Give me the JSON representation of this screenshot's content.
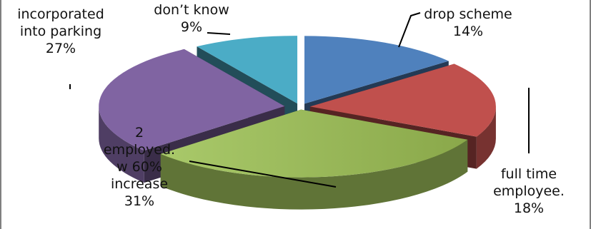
{
  "chart_data": {
    "type": "pie",
    "style": "3d-exploded",
    "slices": [
      {
        "label_lines": [
          "drop scheme"
        ],
        "value_text": "14%",
        "value": 14,
        "color": "#4f81bd"
      },
      {
        "label_lines": [
          "full time",
          "employee."
        ],
        "value_text": "18%",
        "value": 18,
        "color": "#c0504d"
      },
      {
        "label_lines": [
          "2",
          "employed.",
          "w 60%",
          "increase"
        ],
        "value_text": "31%",
        "value": 31,
        "color": "#9bbb59"
      },
      {
        "label_lines": [
          "incorporated",
          "into parking"
        ],
        "value_text": "27%",
        "value": 27,
        "color": "#8064a2"
      },
      {
        "label_lines": [
          "don’t know"
        ],
        "value_text": "9%",
        "value": 9,
        "color": "#4bacc6"
      }
    ],
    "legend": "none"
  }
}
